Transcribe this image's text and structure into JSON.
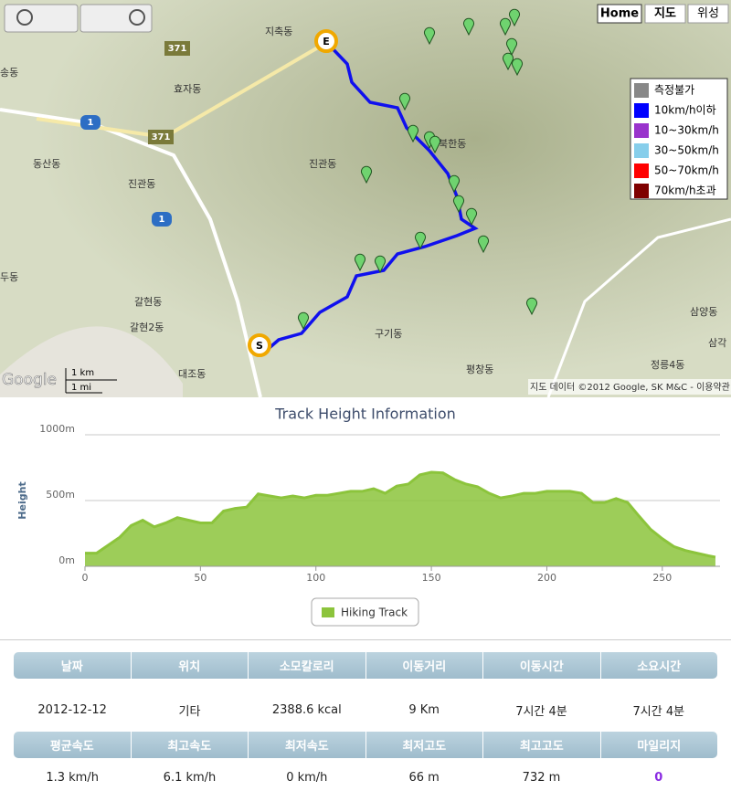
{
  "map": {
    "controls": [
      "Home",
      "지도",
      "위성"
    ],
    "legend": [
      {
        "label": "측정불가",
        "color": "#888888"
      },
      {
        "label": "10km/h이하",
        "color": "#0000ff"
      },
      {
        "label": "10~30km/h",
        "color": "#9933cc"
      },
      {
        "label": "30~50km/h",
        "color": "#87ceeb"
      },
      {
        "label": "50~70km/h",
        "color": "#ff0000"
      },
      {
        "label": "70km/h초과",
        "color": "#7f0000"
      }
    ],
    "places": [
      "지축동",
      "효자동",
      "북한동",
      "진관동",
      "진관동",
      "동산동",
      "갈현동",
      "갈현2동",
      "구기동",
      "평창동",
      "삼양동",
      "삼각",
      "정릉4동",
      "대조동",
      "두동",
      "송동"
    ],
    "roads": [
      "371",
      "371",
      "1",
      "1"
    ],
    "markers": [
      "S",
      "E"
    ],
    "scale": [
      "1 km",
      "1 mi"
    ],
    "brand": "Google",
    "attribution": "지도 데이터 ©2012 Google, SK M&C - 이용약관"
  },
  "chart_data": {
    "type": "area",
    "title": "Track Height Information",
    "y_label": "Height",
    "x": [
      0,
      5,
      10,
      15,
      20,
      25,
      30,
      35,
      40,
      45,
      50,
      55,
      60,
      65,
      70,
      75,
      80,
      85,
      90,
      95,
      100,
      105,
      110,
      115,
      120,
      125,
      130,
      135,
      140,
      145,
      150,
      155,
      160,
      165,
      170,
      175,
      180,
      185,
      190,
      195,
      200,
      205,
      210,
      215,
      220,
      225,
      230,
      235,
      240,
      245,
      250,
      255,
      260,
      265,
      270,
      273
    ],
    "series": [
      {
        "name": "Hiking Track",
        "color": "#8cc43c",
        "values": [
          100,
          100,
          160,
          220,
          310,
          350,
          300,
          330,
          370,
          350,
          330,
          330,
          420,
          440,
          450,
          550,
          535,
          520,
          535,
          520,
          540,
          540,
          555,
          570,
          570,
          590,
          555,
          610,
          625,
          695,
          715,
          710,
          660,
          625,
          605,
          555,
          520,
          535,
          555,
          555,
          570,
          570,
          570,
          555,
          485,
          485,
          515,
          485,
          380,
          280,
          210,
          150,
          120,
          100,
          80,
          70
        ]
      }
    ],
    "xlim": [
      0,
      275
    ],
    "ylim": [
      0,
      1000
    ],
    "xticks": [
      0,
      50,
      100,
      150,
      200,
      250
    ],
    "yticks": [
      {
        "value": 0,
        "label": "0m"
      },
      {
        "value": 500,
        "label": "500m"
      },
      {
        "value": 1000,
        "label": "1000m"
      }
    ],
    "grid": true
  },
  "table": {
    "rows": [
      [
        "날짜",
        "위치",
        "소모칼로리",
        "이동거리",
        "이동시간",
        "소요시간"
      ],
      [
        "2012-12-12",
        "기타",
        "2388.6 kcal",
        "9 Km",
        "7시간 4분",
        "7시간 4분"
      ],
      [
        "평균속도",
        "최고속도",
        "최저속도",
        "최저고도",
        "최고고도",
        "마일리지"
      ],
      [
        "1.3 km/h",
        "6.1 km/h",
        "0 km/h",
        "66 m",
        "732 m",
        "0"
      ]
    ]
  }
}
